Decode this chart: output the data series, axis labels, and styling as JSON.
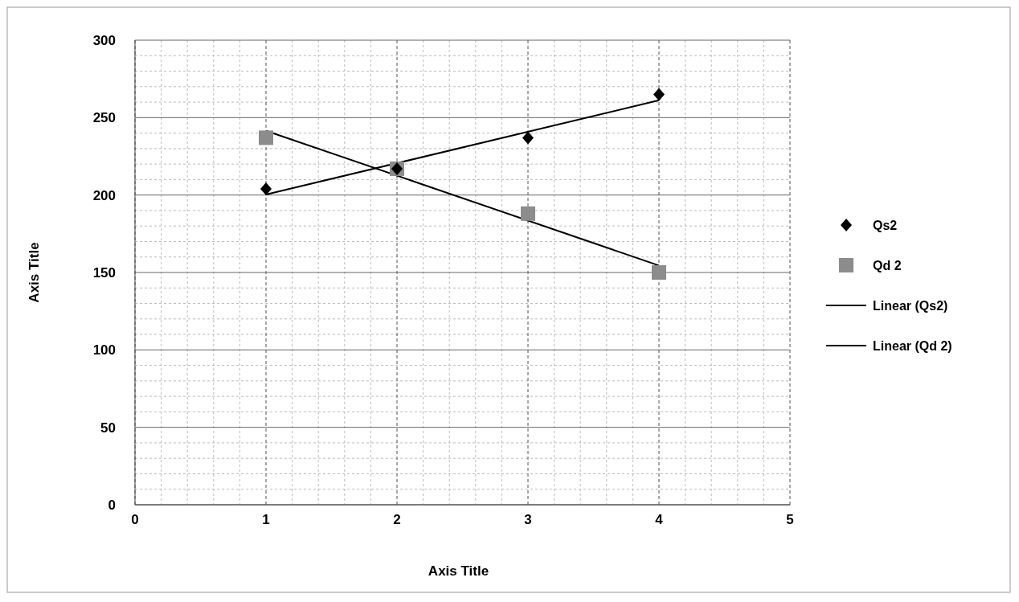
{
  "chart_data": {
    "type": "scatter",
    "xlabel": "Axis Title",
    "ylabel": "Axis Title",
    "xlim": [
      0,
      5
    ],
    "xticks": [
      0,
      1,
      2,
      3,
      4,
      5
    ],
    "ylim": [
      0,
      300
    ],
    "yticks": [
      0,
      50,
      100,
      150,
      200,
      250,
      300
    ],
    "grid": true,
    "legend": "right",
    "series": [
      {
        "name": "Qs2",
        "marker": "diamond",
        "color": "#000000",
        "x": [
          1,
          2,
          3,
          4
        ],
        "values": [
          204,
          217,
          237,
          265
        ]
      },
      {
        "name": "Qd 2",
        "marker": "square",
        "color": "#8c8c8c",
        "x": [
          1,
          2,
          3,
          4
        ],
        "values": [
          237,
          217,
          188,
          150
        ]
      },
      {
        "name": "Linear (Qs2)",
        "type": "line",
        "color": "#000000",
        "x": [
          1,
          4
        ],
        "values": [
          200.3,
          261.2
        ]
      },
      {
        "name": "Linear (Qd 2)",
        "type": "line",
        "color": "#000000",
        "x": [
          1,
          4
        ],
        "values": [
          241.5,
          154.5
        ]
      }
    ]
  }
}
